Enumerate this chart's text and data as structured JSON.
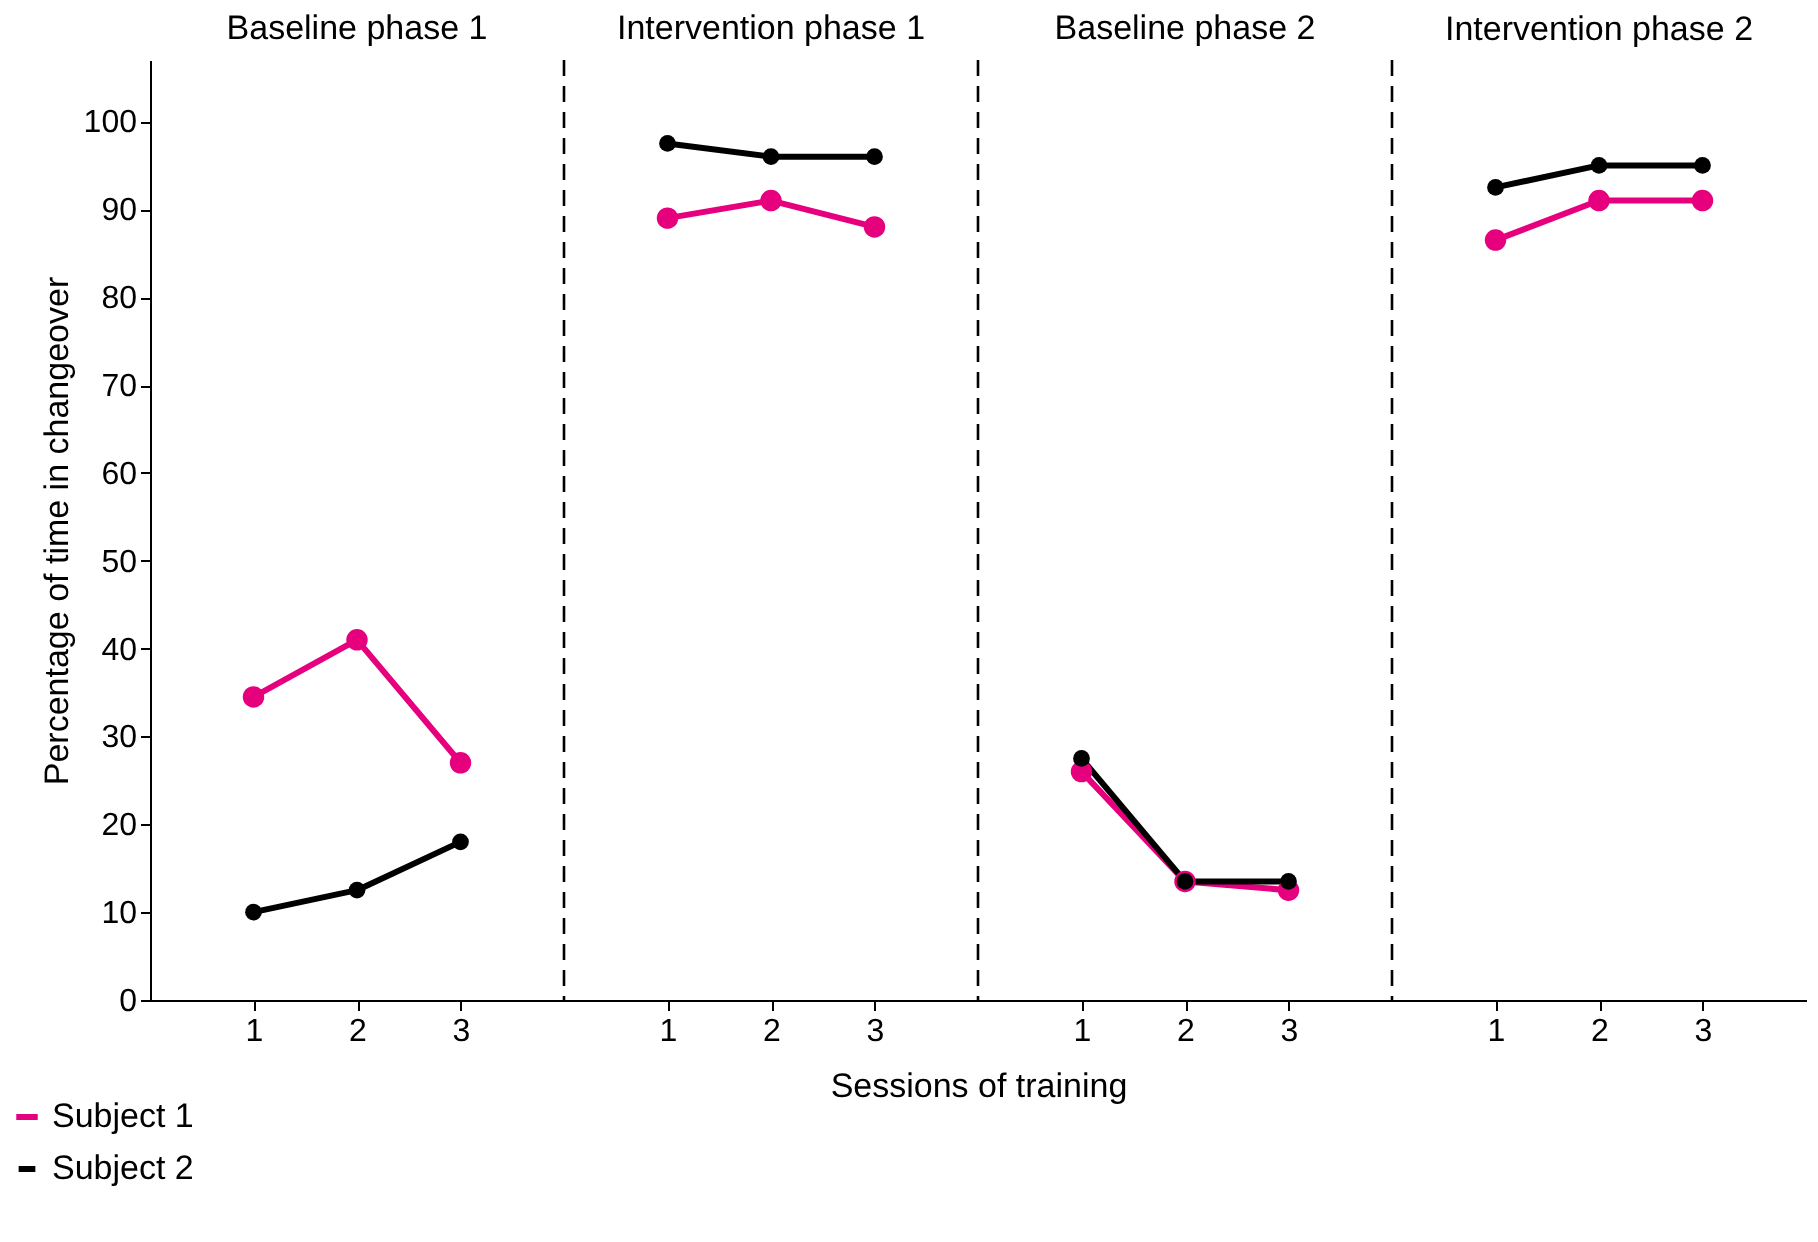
{
  "chart_data": [
    {
      "type": "line",
      "title": "Baseline phase 1",
      "ylabel": "Percentage of time in changeover",
      "x": [
        1,
        2,
        3
      ],
      "series": [
        {
          "name": "Subject 1",
          "color": "#e6007e",
          "values": [
            34.5,
            41,
            27
          ]
        },
        {
          "name": "Subject 2",
          "color": "#000000",
          "values": [
            10,
            12.5,
            18
          ]
        }
      ],
      "xlim": [
        0,
        4
      ],
      "ylim": [
        0,
        107
      ],
      "xticks": [
        1,
        2,
        3
      ],
      "yticks": [
        0,
        10,
        20,
        30,
        40,
        50,
        60,
        70,
        80,
        90,
        100
      ],
      "ref_lines": [
        {
          "axis": "x",
          "value": 4,
          "line_style": "dashed",
          "color": "#000000"
        }
      ],
      "grid": false,
      "legend": "bottom left",
      "marker": "circle",
      "line_style": "solid"
    },
    {
      "type": "line",
      "title": "Intervention phase 1",
      "x": [
        1,
        2,
        3
      ],
      "series": [
        {
          "name": "Subject 1",
          "color": "#e6007e",
          "values": [
            89,
            91,
            88
          ]
        },
        {
          "name": "Subject 2",
          "color": "#000000",
          "values": [
            97.5,
            96,
            96
          ]
        }
      ],
      "xlim": [
        0,
        4
      ],
      "ylim": [
        0,
        107
      ],
      "xticks": [
        1,
        2,
        3
      ],
      "tick_labels": "x",
      "ref_lines": [
        {
          "axis": "x",
          "value": 4,
          "line_style": "dashed",
          "color": "#000000"
        }
      ],
      "grid": false,
      "marker": "circle",
      "line_style": "solid"
    },
    {
      "type": "line",
      "title": "Baseline phase 2",
      "xlabel": "Sessions of training",
      "x": [
        1,
        2,
        3
      ],
      "series": [
        {
          "name": "Subject 1",
          "color": "#e6007e",
          "values": [
            26,
            13.5,
            12.5
          ]
        },
        {
          "name": "Subject 2",
          "color": "#000000",
          "values": [
            27.5,
            13.5,
            13.5
          ]
        }
      ],
      "xlim": [
        0,
        4
      ],
      "ylim": [
        0,
        107
      ],
      "xticks": [
        1,
        2,
        3
      ],
      "tick_labels": "x",
      "ref_lines": [
        {
          "axis": "x",
          "value": 4,
          "line_style": "dashed",
          "color": "#000000"
        }
      ],
      "grid": false,
      "marker": "circle",
      "line_style": "solid"
    },
    {
      "type": "line",
      "title": "Intervention phase 2",
      "x": [
        1,
        2,
        3
      ],
      "series": [
        {
          "name": "Subject 1",
          "color": "#e6007e",
          "values": [
            86.5,
            91,
            91
          ]
        },
        {
          "name": "Subject 2",
          "color": "#000000",
          "values": [
            92.5,
            95,
            95
          ]
        }
      ],
      "xlim": [
        0,
        4
      ],
      "ylim": [
        0,
        107
      ],
      "xticks": [
        1,
        2,
        3
      ],
      "tick_labels": "x",
      "grid": false,
      "marker": "circle",
      "line_style": "solid"
    }
  ]
}
